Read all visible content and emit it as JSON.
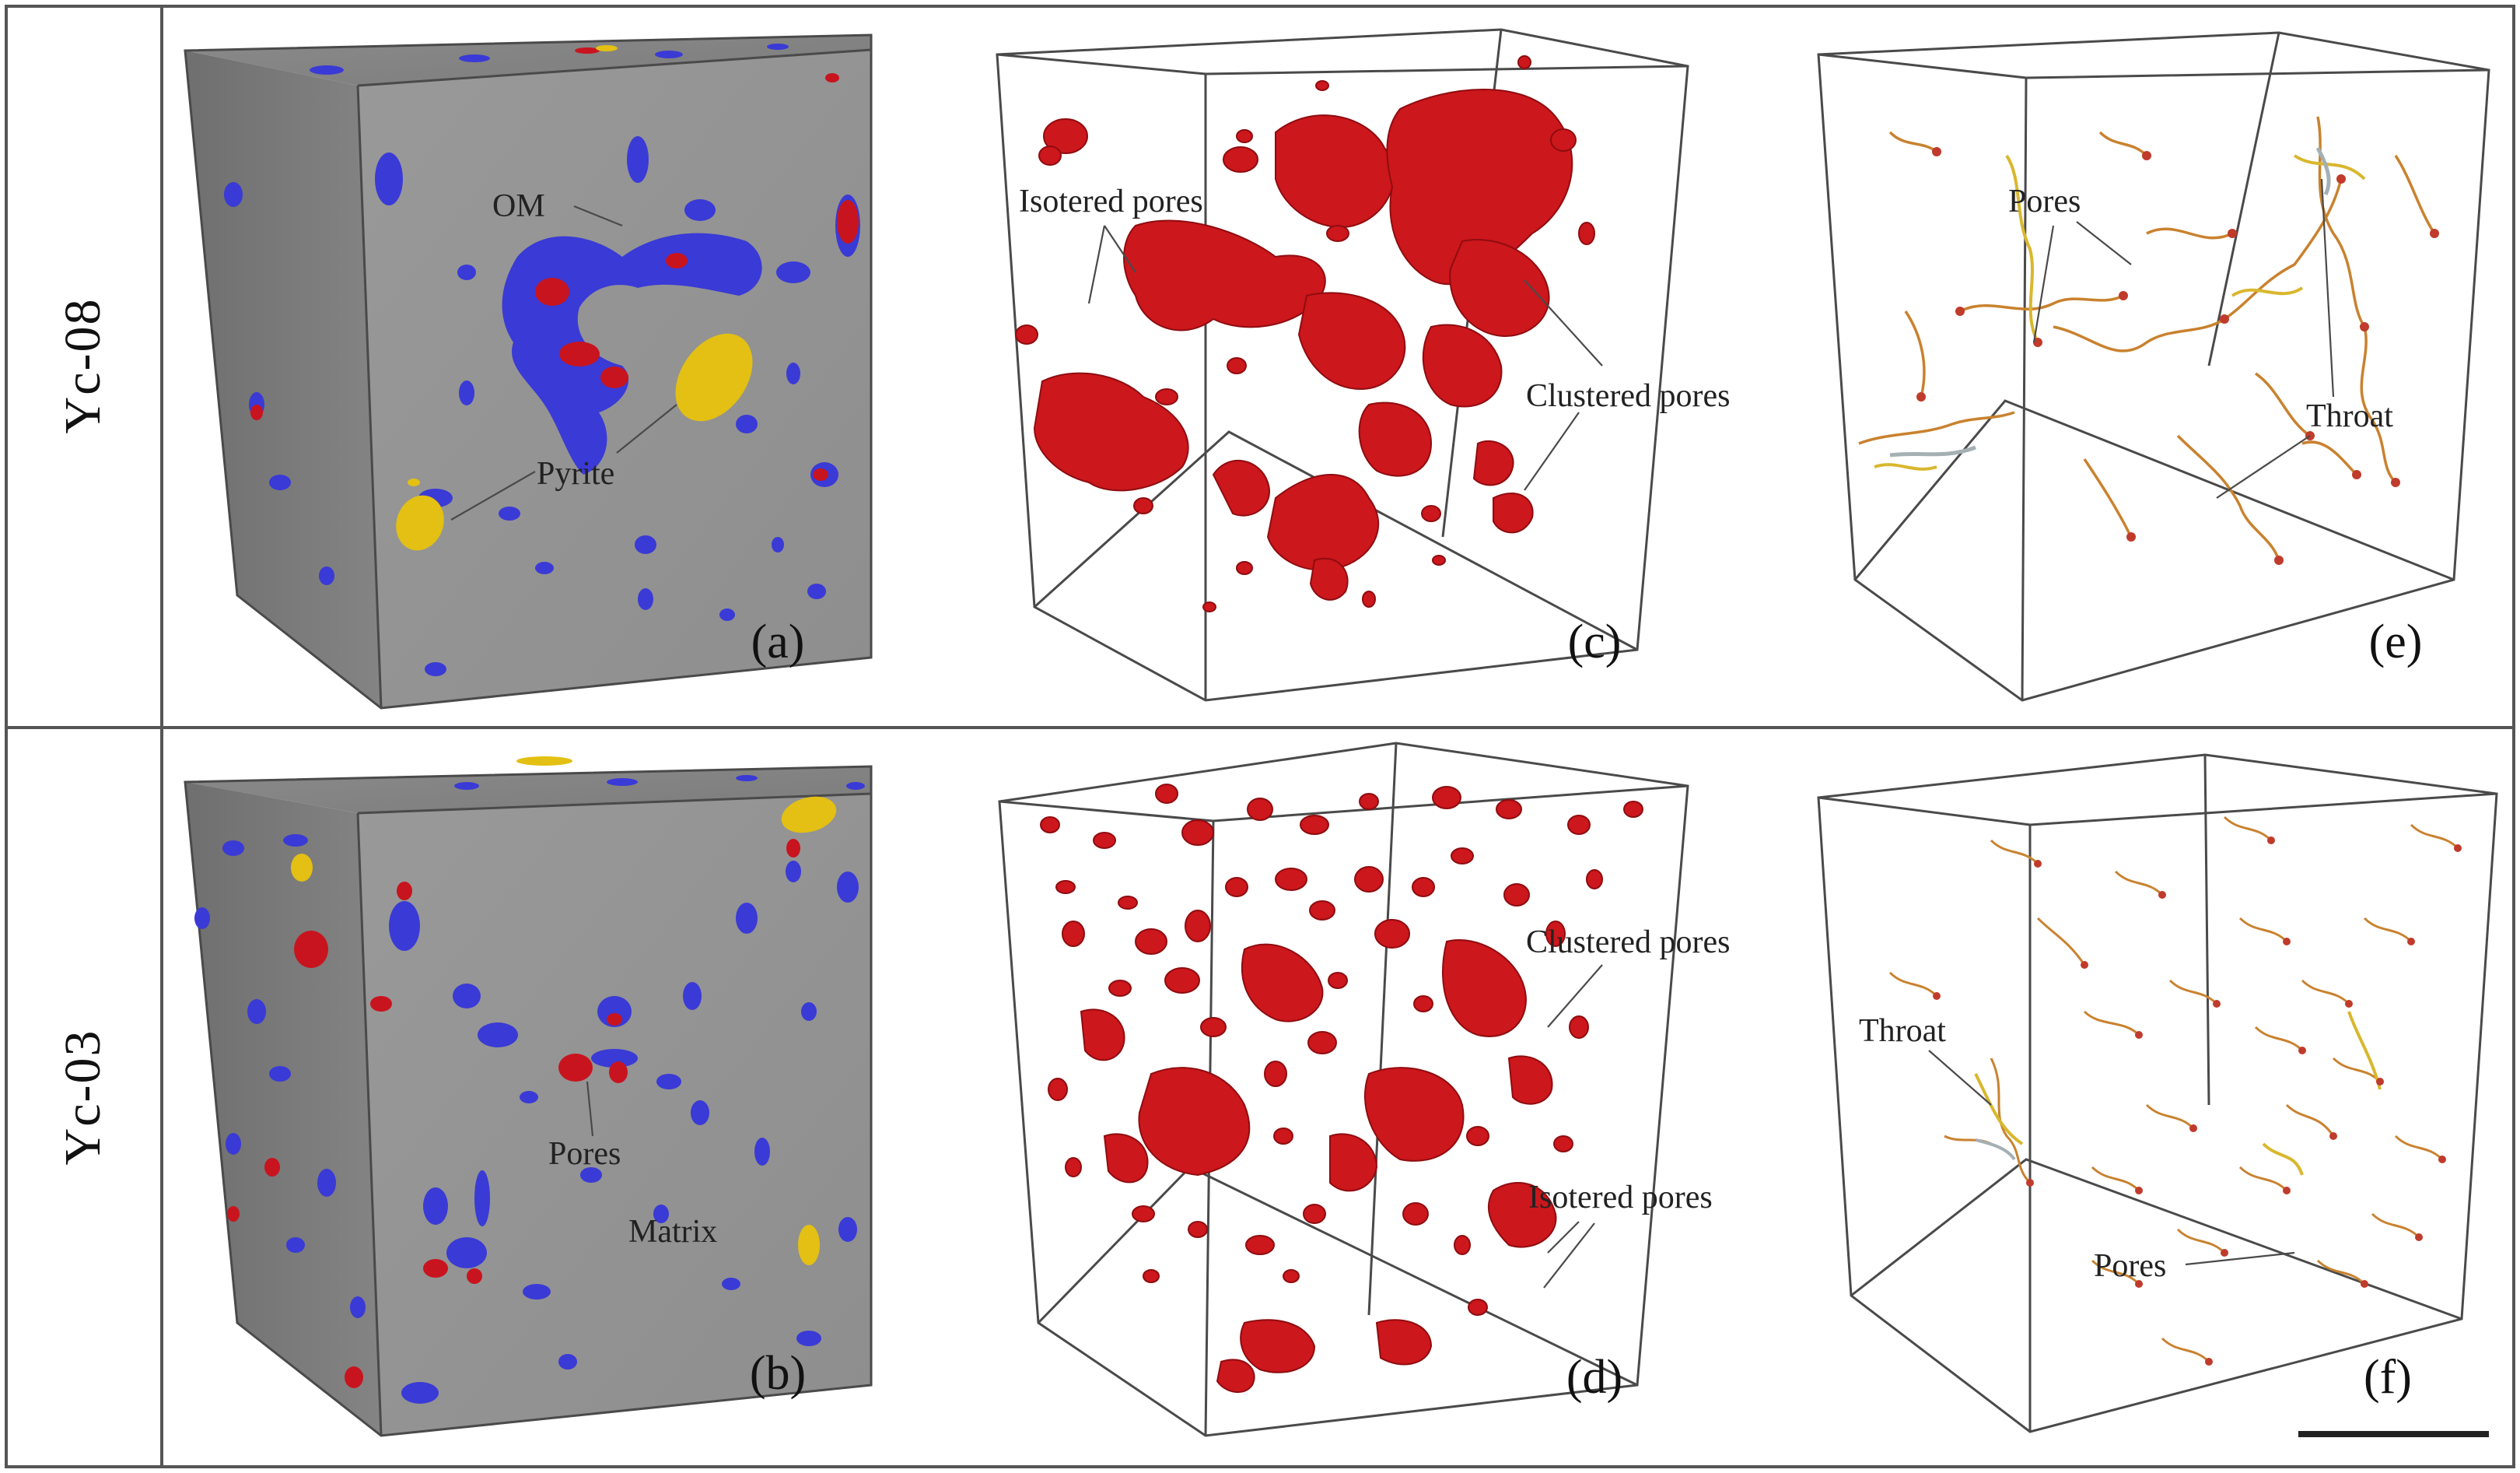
{
  "rows": [
    {
      "label": "Yc-08"
    },
    {
      "label": "Yc-03"
    }
  ],
  "panels": [
    {
      "id": "a",
      "letter": "(a)",
      "kind": "segmented-cube",
      "sample": "Yc-08",
      "annotations": [
        "OM",
        "Pyrite"
      ]
    },
    {
      "id": "c",
      "letter": "(c)",
      "kind": "pore-render",
      "sample": "Yc-08",
      "annotations": [
        "Isotered pores",
        "Clustered pores"
      ]
    },
    {
      "id": "e",
      "letter": "(e)",
      "kind": "pore-network",
      "sample": "Yc-08",
      "annotations": [
        "Pores",
        "Throat"
      ]
    },
    {
      "id": "b",
      "letter": "(b)",
      "kind": "segmented-cube",
      "sample": "Yc-03",
      "annotations": [
        "Pores",
        "Matrix"
      ]
    },
    {
      "id": "d",
      "letter": "(d)",
      "kind": "pore-render",
      "sample": "Yc-03",
      "annotations": [
        "Clustered pores",
        "Isotered pores"
      ]
    },
    {
      "id": "f",
      "letter": "(f)",
      "kind": "pore-network",
      "sample": "Yc-03",
      "annotations": [
        "Throat",
        "Pores"
      ]
    }
  ],
  "colors": {
    "matrix": "#8d8d8d",
    "organic_matter": "#3a3ad6",
    "pores": "#c8141e",
    "pyrite": "#e3c013",
    "network_link": "#c9822f",
    "network_node": "#c03b2b",
    "frame": "#555555"
  },
  "icons": {
    "scale_bar": "scale-bar"
  }
}
